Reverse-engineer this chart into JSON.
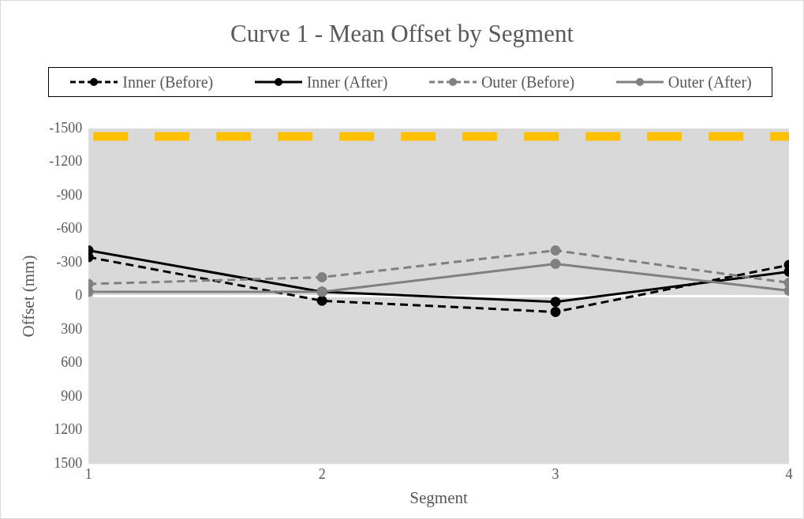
{
  "chart_data": {
    "type": "line",
    "title": "Curve 1 - Mean Offset by Segment",
    "xlabel": "Segment",
    "ylabel": "Offset (mm)",
    "x": [
      1,
      2,
      3,
      4
    ],
    "xlim": [
      1,
      4
    ],
    "xticks": [
      1,
      2,
      3,
      4
    ],
    "ylim": [
      1500,
      -1500
    ],
    "yticks": [
      -1500,
      -1200,
      -900,
      -600,
      -300,
      0,
      300,
      600,
      900,
      1200,
      1500
    ],
    "series": [
      {
        "name": "Inner (Before)",
        "color": "#000000",
        "line_style": "dashed",
        "values": [
          -350,
          40,
          140,
          -280
        ]
      },
      {
        "name": "Inner (After)",
        "color": "#000000",
        "line_style": "solid",
        "values": [
          -410,
          -40,
          50,
          -220
        ]
      },
      {
        "name": "Outer (Before)",
        "color": "#808080",
        "line_style": "dashed",
        "values": [
          -110,
          -170,
          -410,
          -120
        ]
      },
      {
        "name": "Outer (After)",
        "color": "#808080",
        "line_style": "solid",
        "values": [
          -40,
          -40,
          -290,
          -50
        ]
      }
    ],
    "ref_lines": [
      {
        "axis": "y",
        "value": -1430,
        "color": "#ffc000",
        "line_style": "dashed"
      },
      {
        "axis": "y",
        "value": 0,
        "color": "#ffffff",
        "line_style": "solid"
      }
    ],
    "marker": "circle",
    "grid": false,
    "legend": "top"
  }
}
